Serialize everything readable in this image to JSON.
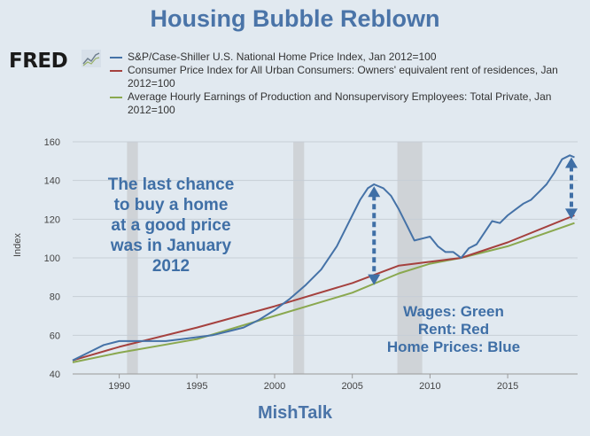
{
  "header": {
    "title": "Housing Bubble Reblown",
    "logo_text": "FRED"
  },
  "footer": {
    "text": "MishTalk"
  },
  "chart_data": {
    "type": "line",
    "ylabel": "Index",
    "ylim": [
      40,
      160
    ],
    "xlim": [
      1987,
      2019.5
    ],
    "y_ticks": [
      40,
      60,
      80,
      100,
      120,
      140,
      160
    ],
    "x_ticks": [
      1990,
      1995,
      2000,
      2005,
      2010,
      2015
    ],
    "grid": true,
    "recessions": [
      [
        1990.5,
        1991.2
      ],
      [
        2001.2,
        2001.9
      ],
      [
        2007.9,
        2009.5
      ]
    ],
    "series": [
      {
        "name": "S&P/Case-Shiller U.S. National Home Price Index, Jan 2012=100",
        "color": "#4572a7",
        "x": [
          1987,
          1988,
          1989,
          1990,
          1991,
          1992,
          1993,
          1994,
          1995,
          1996,
          1997,
          1998,
          1999,
          2000,
          2001,
          2002,
          2003,
          2004,
          2005,
          2005.5,
          2006,
          2006.4,
          2007,
          2007.5,
          2008,
          2008.5,
          2009,
          2009.5,
          2010,
          2010.5,
          2011,
          2011.5,
          2012,
          2012.5,
          2013,
          2013.5,
          2014,
          2014.5,
          2015,
          2015.5,
          2016,
          2016.5,
          2017,
          2017.5,
          2018,
          2018.5,
          2019,
          2019.3
        ],
        "values": [
          47,
          51,
          55,
          57,
          57,
          57,
          57,
          58,
          59,
          60,
          62,
          64,
          68,
          73,
          79,
          86,
          94,
          106,
          122,
          130,
          136,
          138,
          136,
          132,
          125,
          117,
          109,
          110,
          111,
          106,
          103,
          103,
          100,
          105,
          107,
          113,
          119,
          118,
          122,
          125,
          128,
          130,
          134,
          138,
          144,
          151,
          153,
          152
        ]
      },
      {
        "name": "Consumer Price Index for All Urban Consumers: Owners' equivalent rent of residences, Jan 2012=100",
        "color": "#a5413e",
        "x": [
          1987,
          1990,
          1995,
          2000,
          2005,
          2008,
          2010,
          2012,
          2015,
          2019.3
        ],
        "values": [
          47,
          54,
          64,
          75,
          87,
          96,
          98,
          100,
          108,
          122
        ]
      },
      {
        "name": "Average Hourly Earnings of Production and Nonsupervisory Employees: Total Private, Jan 2012=100",
        "color": "#8aa84f",
        "x": [
          1987,
          1990,
          1995,
          2000,
          2005,
          2008,
          2010,
          2012,
          2015,
          2019.3
        ],
        "values": [
          46,
          51,
          58,
          70,
          82,
          92,
          97,
          100,
          106,
          118
        ]
      }
    ],
    "annotations": {
      "left_text": [
        "The last chance",
        "to buy a home",
        "at a good price",
        "was in January",
        "2012"
      ],
      "right_text": [
        "Wages: Green",
        "Rent: Red",
        "Home Prices: Blue"
      ]
    }
  }
}
